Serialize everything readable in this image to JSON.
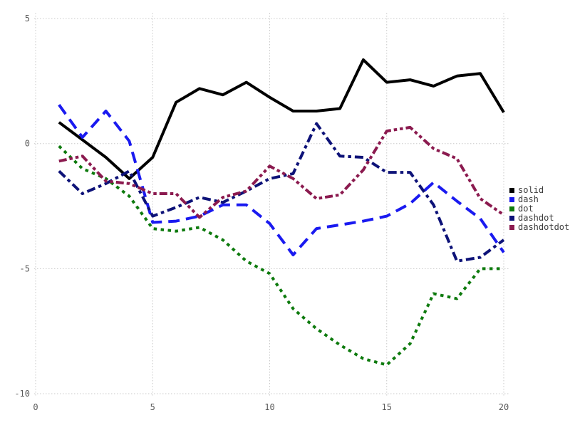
{
  "chart_data": {
    "type": "line",
    "title": "",
    "xlabel": "",
    "ylabel": "",
    "x": [
      1,
      2,
      3,
      4,
      5,
      6,
      7,
      8,
      9,
      10,
      11,
      12,
      13,
      14,
      15,
      16,
      17,
      18,
      19,
      20
    ],
    "series": [
      {
        "name": "solid",
        "color": "#000000",
        "style": "solid",
        "values": [
          0.85,
          0.15,
          -0.55,
          -1.4,
          -0.55,
          1.65,
          2.2,
          1.95,
          2.45,
          1.85,
          1.3,
          1.3,
          1.4,
          3.35,
          2.45,
          2.55,
          2.3,
          2.7,
          2.8,
          1.25
        ]
      },
      {
        "name": "dash",
        "color": "#1a1af0",
        "style": "dash",
        "values": [
          1.55,
          0.25,
          1.3,
          0.1,
          -3.15,
          -3.1,
          -2.9,
          -2.45,
          -2.45,
          -3.2,
          -4.45,
          -3.4,
          -3.25,
          -3.1,
          -2.9,
          -2.4,
          -1.55,
          -2.3,
          -3.0,
          -4.35
        ]
      },
      {
        "name": "dot",
        "color": "#0d7a0d",
        "style": "dot",
        "values": [
          -0.1,
          -1.0,
          -1.4,
          -2.1,
          -3.4,
          -3.5,
          -3.35,
          -3.85,
          -4.7,
          -5.2,
          -6.6,
          -7.4,
          -8.05,
          -8.6,
          -8.85,
          -8.0,
          -6.0,
          -6.2,
          -5.0,
          -5.0
        ]
      },
      {
        "name": "dashdot",
        "color": "#0d1278",
        "style": "dashdot",
        "values": [
          -1.1,
          -2.0,
          -1.6,
          -1.1,
          -2.9,
          -2.55,
          -2.15,
          -2.35,
          -1.9,
          -1.4,
          -1.2,
          0.8,
          -0.5,
          -0.55,
          -1.15,
          -1.15,
          -2.45,
          -4.7,
          -4.55,
          -3.85
        ]
      },
      {
        "name": "dashdotdot",
        "color": "#8b1a4f",
        "style": "dashdotdot",
        "values": [
          -0.7,
          -0.5,
          -1.5,
          -1.6,
          -2.0,
          -2.0,
          -2.95,
          -2.15,
          -1.9,
          -0.9,
          -1.4,
          -2.2,
          -2.05,
          -1.05,
          0.5,
          0.65,
          -0.2,
          -0.6,
          -2.2,
          -2.85
        ]
      }
    ],
    "xticks": [
      0,
      5,
      10,
      15,
      20
    ],
    "yticks": [
      5,
      0,
      -5,
      -10
    ],
    "xlim": [
      0,
      20
    ],
    "ylim": [
      -10,
      5
    ],
    "grid": true,
    "grid_style": "dotted",
    "grid_color": "#c9c9c9",
    "tick_label_color": "#5a5a5a",
    "legend_position": "right",
    "legend_labels": [
      "solid",
      "dash",
      "dot",
      "dashdot",
      "dashdotdot"
    ]
  }
}
